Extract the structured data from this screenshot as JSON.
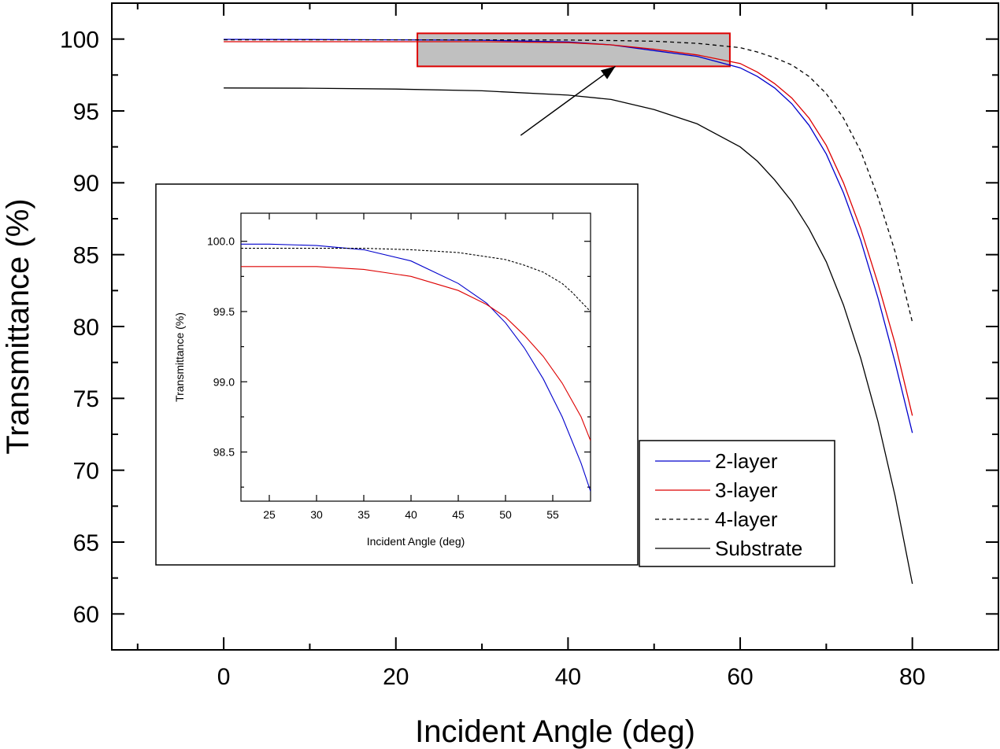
{
  "chart_data": [
    {
      "type": "line",
      "role": "main",
      "xlabel": "Incident Angle (deg)",
      "ylabel": "Transmittance (%)",
      "xlim": [
        -13,
        90
      ],
      "ylim": [
        57.5,
        102.5
      ],
      "xticks": [
        0,
        20,
        40,
        60,
        80
      ],
      "yticks": [
        60,
        65,
        70,
        75,
        80,
        85,
        90,
        95,
        100
      ],
      "xtick_labels": [
        "0",
        "20",
        "40",
        "60",
        "80"
      ],
      "ytick_labels": [
        "60",
        "65",
        "70",
        "75",
        "80",
        "85",
        "90",
        "95",
        "100"
      ],
      "grid": false,
      "legend_position": "bottom-right",
      "series": [
        {
          "name": "2-layer",
          "color": "#0000cc",
          "dash": "solid",
          "x": [
            0,
            10,
            20,
            30,
            40,
            45,
            50,
            55,
            60,
            62,
            64,
            66,
            68,
            70,
            72,
            74,
            76,
            78,
            80
          ],
          "y": [
            99.98,
            99.97,
            99.95,
            99.92,
            99.8,
            99.6,
            99.2,
            98.8,
            98.0,
            97.4,
            96.6,
            95.5,
            94.0,
            92.0,
            89.3,
            86.0,
            82.0,
            77.5,
            72.6
          ]
        },
        {
          "name": "3-layer",
          "color": "#dd0000",
          "dash": "solid",
          "x": [
            0,
            10,
            20,
            30,
            40,
            45,
            50,
            55,
            60,
            62,
            64,
            66,
            68,
            70,
            72,
            74,
            76,
            78,
            80
          ],
          "y": [
            99.82,
            99.82,
            99.82,
            99.82,
            99.75,
            99.6,
            99.3,
            98.9,
            98.3,
            97.7,
            96.9,
            95.9,
            94.5,
            92.6,
            90.0,
            86.8,
            83.0,
            78.8,
            73.8
          ]
        },
        {
          "name": "4-layer",
          "color": "#000000",
          "dash": "dashed",
          "x": [
            0,
            20,
            30,
            40,
            45,
            50,
            55,
            60,
            62,
            64,
            66,
            68,
            70,
            72,
            74,
            76,
            78,
            80
          ],
          "y": [
            99.95,
            99.95,
            99.95,
            99.93,
            99.9,
            99.85,
            99.7,
            99.4,
            99.1,
            98.7,
            98.2,
            97.4,
            96.2,
            94.5,
            92.2,
            89.0,
            85.2,
            80.3
          ]
        },
        {
          "name": "Substrate",
          "color": "#000000",
          "dash": "solid",
          "x": [
            0,
            10,
            20,
            30,
            40,
            45,
            50,
            55,
            60,
            62,
            64,
            66,
            68,
            70,
            72,
            74,
            76,
            78,
            80
          ],
          "y": [
            96.6,
            96.58,
            96.52,
            96.4,
            96.1,
            95.8,
            95.1,
            94.1,
            92.5,
            91.5,
            90.2,
            88.7,
            86.8,
            84.5,
            81.5,
            77.8,
            73.4,
            68.2,
            62.1
          ]
        }
      ],
      "annotations": [
        {
          "type": "highlight-rectangle",
          "x_range": [
            22.5,
            58.8
          ],
          "y_range": [
            98.1,
            100.4
          ],
          "fill": "#c0c0c0",
          "stroke": "#dd0000"
        },
        {
          "type": "arrow",
          "from": [
            34.5,
            93.3
          ],
          "to": [
            45.5,
            98.1
          ],
          "color": "#000000"
        }
      ]
    },
    {
      "type": "line",
      "role": "inset",
      "xlabel": "Incident Angle (deg)",
      "ylabel": "Transmittance (%)",
      "xlim": [
        22,
        59
      ],
      "ylim": [
        98.15,
        100.2
      ],
      "xticks": [
        25,
        30,
        35,
        40,
        45,
        50,
        55
      ],
      "yticks": [
        98.5,
        99.0,
        99.5,
        100.0
      ],
      "xtick_labels": [
        "25",
        "30",
        "35",
        "40",
        "45",
        "50",
        "55"
      ],
      "ytick_labels": [
        "98.5",
        "99.0",
        "99.5",
        "100.0"
      ],
      "grid": false,
      "series": [
        {
          "name": "2-layer",
          "color": "#0000cc",
          "dash": "solid",
          "x": [
            22,
            25,
            30,
            35,
            40,
            45,
            48,
            50,
            52,
            54,
            56,
            58,
            59
          ],
          "y": [
            99.98,
            99.98,
            99.97,
            99.94,
            99.86,
            99.7,
            99.56,
            99.42,
            99.24,
            99.02,
            98.75,
            98.42,
            98.22
          ]
        },
        {
          "name": "3-layer",
          "color": "#dd0000",
          "dash": "solid",
          "x": [
            22,
            25,
            30,
            35,
            40,
            45,
            48,
            50,
            52,
            54,
            56,
            58,
            59
          ],
          "y": [
            99.82,
            99.82,
            99.82,
            99.8,
            99.75,
            99.65,
            99.55,
            99.46,
            99.33,
            99.18,
            98.99,
            98.75,
            98.58
          ]
        },
        {
          "name": "4-layer",
          "color": "#000000",
          "dash": "dashed",
          "x": [
            22,
            30,
            35,
            40,
            45,
            48,
            50,
            52,
            54,
            56,
            57,
            58,
            59
          ],
          "y": [
            99.95,
            99.95,
            99.95,
            99.94,
            99.92,
            99.89,
            99.87,
            99.83,
            99.78,
            99.7,
            99.64,
            99.57,
            99.5
          ]
        }
      ]
    }
  ]
}
